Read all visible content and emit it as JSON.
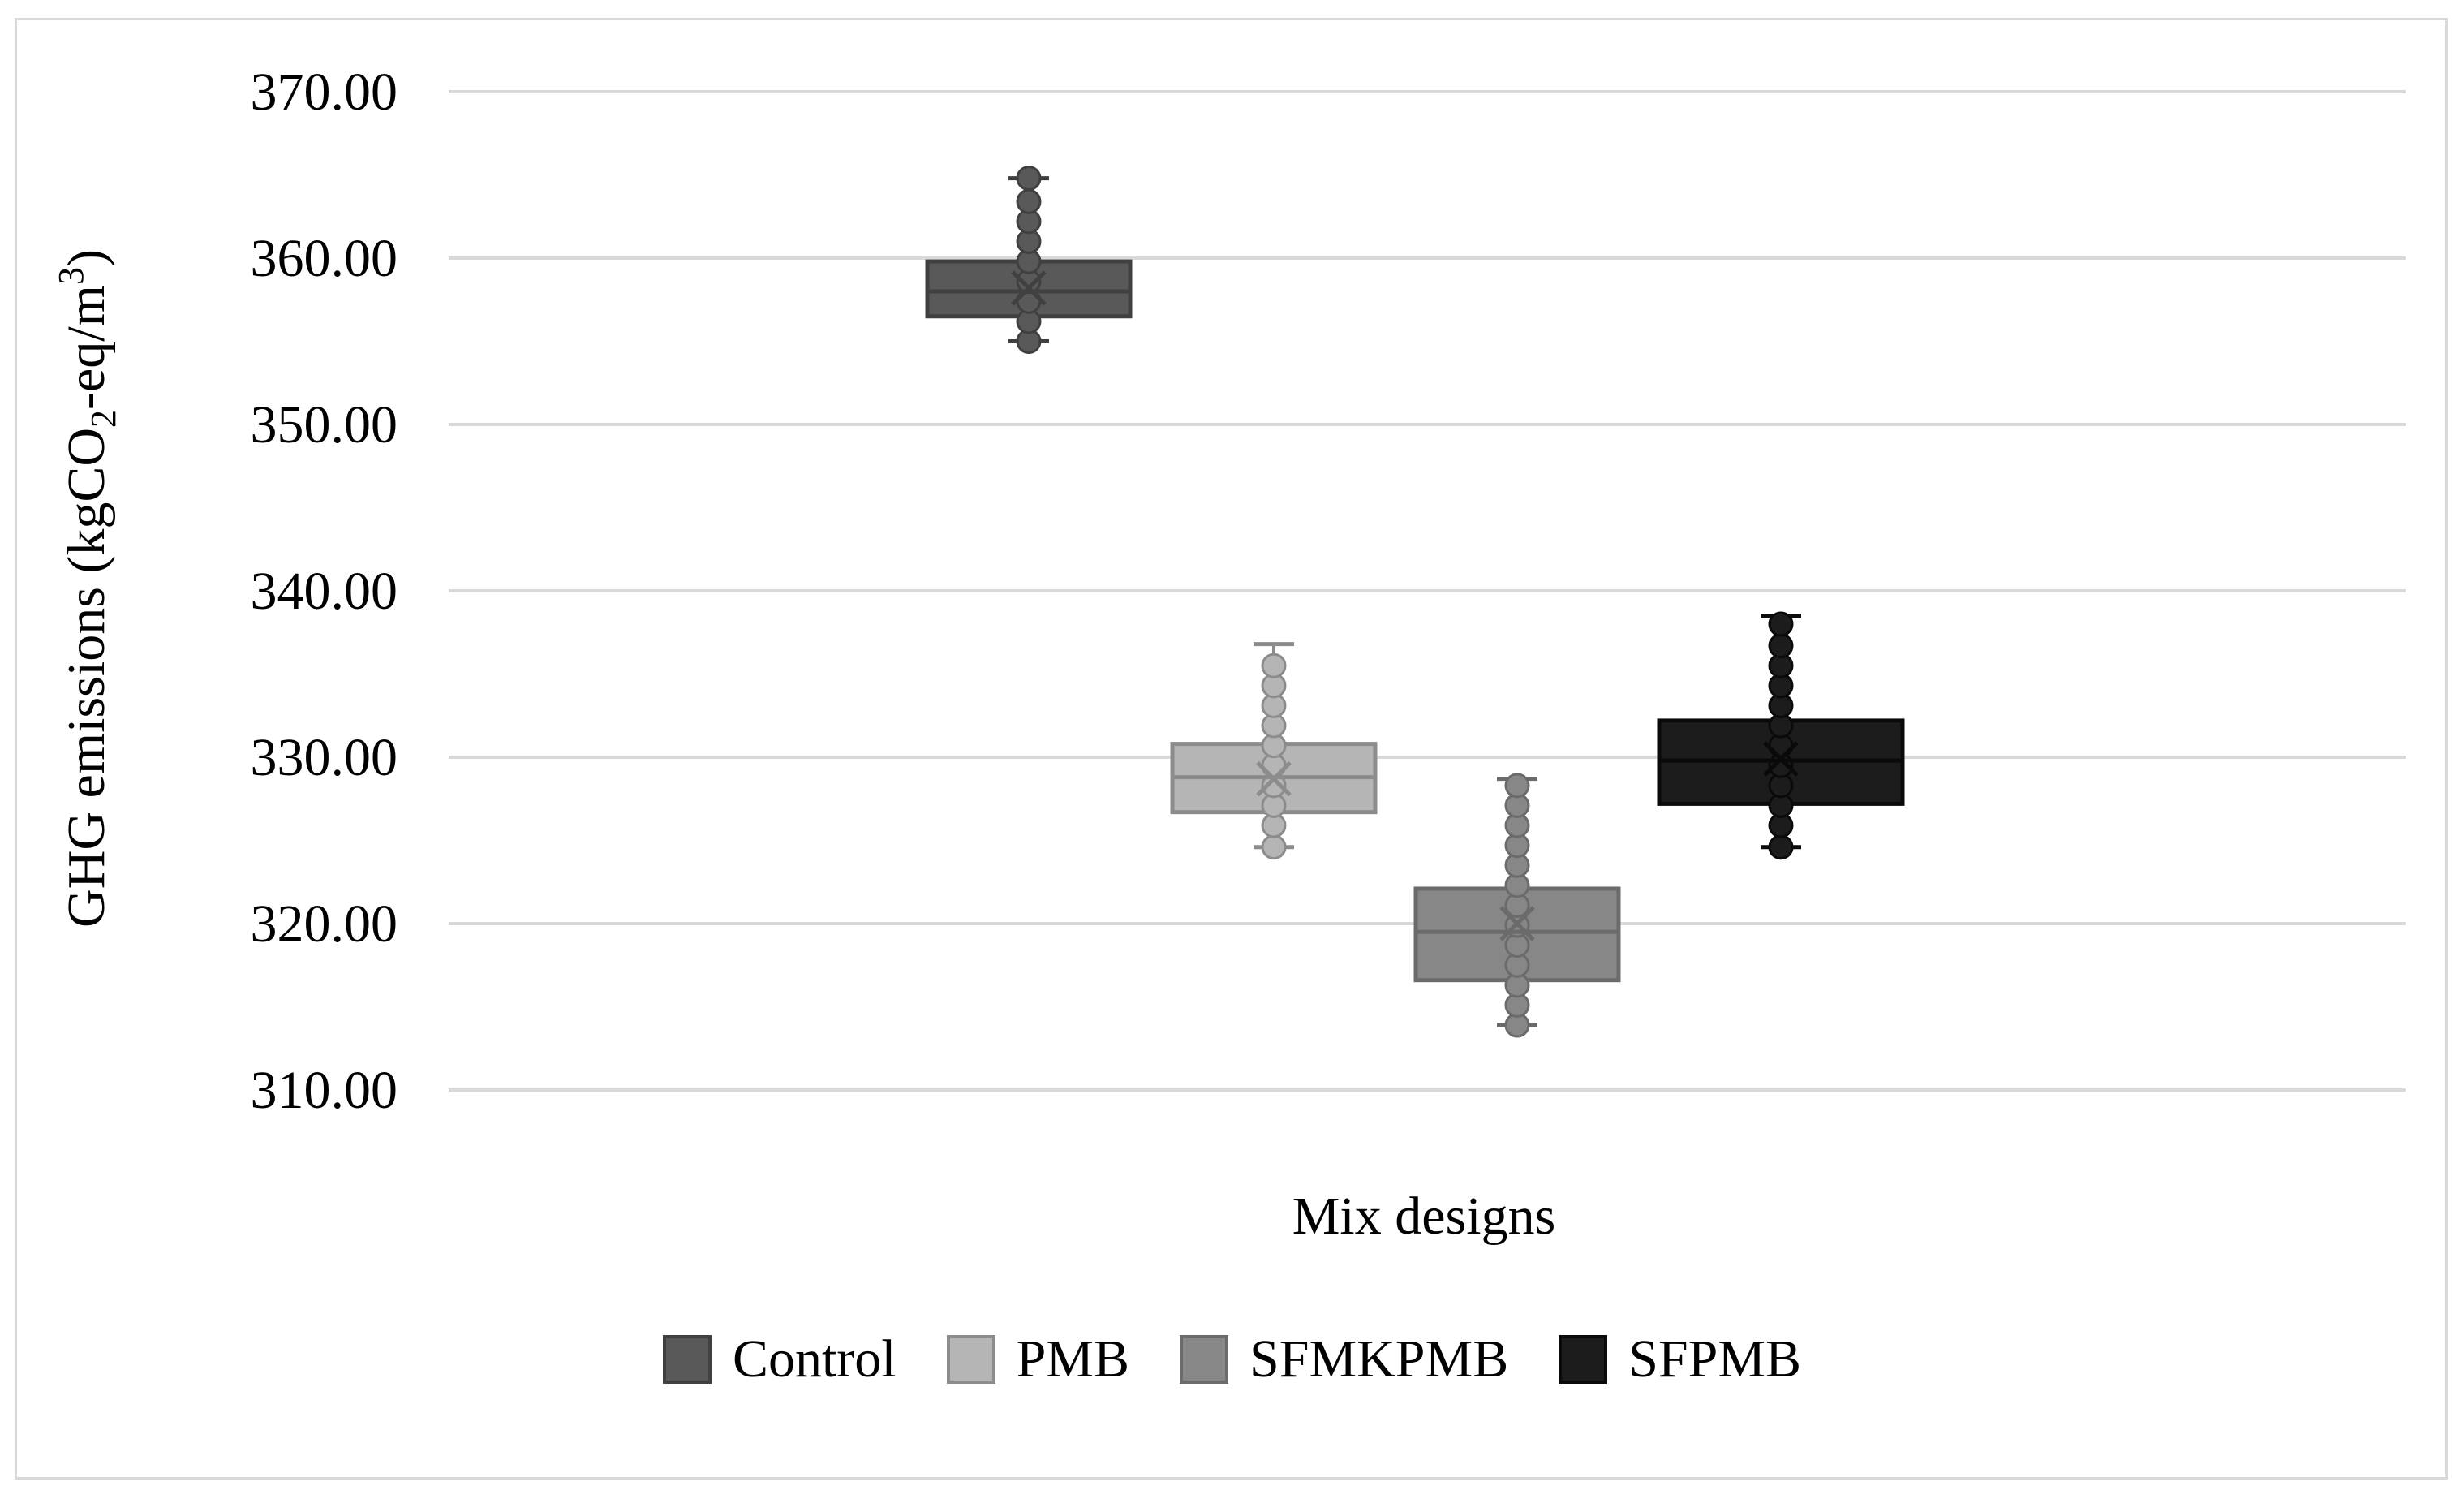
{
  "chart_data": {
    "type": "box",
    "xlabel": "Mix designs",
    "ylabel": "GHG emissions (kgCO",
    "ylabel_sub": "2",
    "ylabel_tail": "-eq/m",
    "ylabel_sup": "3",
    "ylabel_end": ")",
    "ylim": [
      310,
      370
    ],
    "yticks": [
      310,
      320,
      330,
      340,
      350,
      360,
      370
    ],
    "ytick_labels": [
      "310.00",
      "320.00",
      "330.00",
      "340.00",
      "350.00",
      "360.00",
      "370.00"
    ],
    "grid": true,
    "legend_position": "bottom",
    "series": [
      {
        "name": "Control",
        "color": "#595959",
        "edge": "#404040",
        "min": 355.0,
        "q1": 356.5,
        "median": 358.0,
        "q3": 359.8,
        "max": 364.8,
        "mean": 358.2,
        "points": [
          355.0,
          356.2,
          357.4,
          358.6,
          359.8,
          361.0,
          362.2,
          363.4,
          364.8
        ]
      },
      {
        "name": "PMB",
        "color": "#b5b5b5",
        "edge": "#8c8c8c",
        "min": 324.6,
        "q1": 326.7,
        "median": 328.8,
        "q3": 330.8,
        "max": 336.8,
        "mean": 328.7,
        "points": [
          324.6,
          325.9,
          327.1,
          328.3,
          329.5,
          330.7,
          331.9,
          333.1,
          334.3,
          335.5
        ]
      },
      {
        "name": "SFMKPMB",
        "color": "#878787",
        "edge": "#6b6b6b",
        "min": 313.9,
        "q1": 316.6,
        "median": 319.5,
        "q3": 322.1,
        "max": 328.7,
        "mean": 320.0,
        "points": [
          313.9,
          315.1,
          316.3,
          317.5,
          318.7,
          319.9,
          321.1,
          322.3,
          323.5,
          324.7,
          325.9,
          327.1,
          328.3
        ]
      },
      {
        "name": "SFPMB",
        "color": "#1c1c1c",
        "edge": "#0a0a0a",
        "min": 324.6,
        "q1": 327.2,
        "median": 329.8,
        "q3": 332.2,
        "max": 338.5,
        "mean": 329.9,
        "points": [
          324.6,
          325.9,
          327.1,
          328.3,
          329.5,
          330.7,
          331.9,
          333.1,
          334.3,
          335.5,
          336.7,
          338.0
        ]
      }
    ]
  }
}
